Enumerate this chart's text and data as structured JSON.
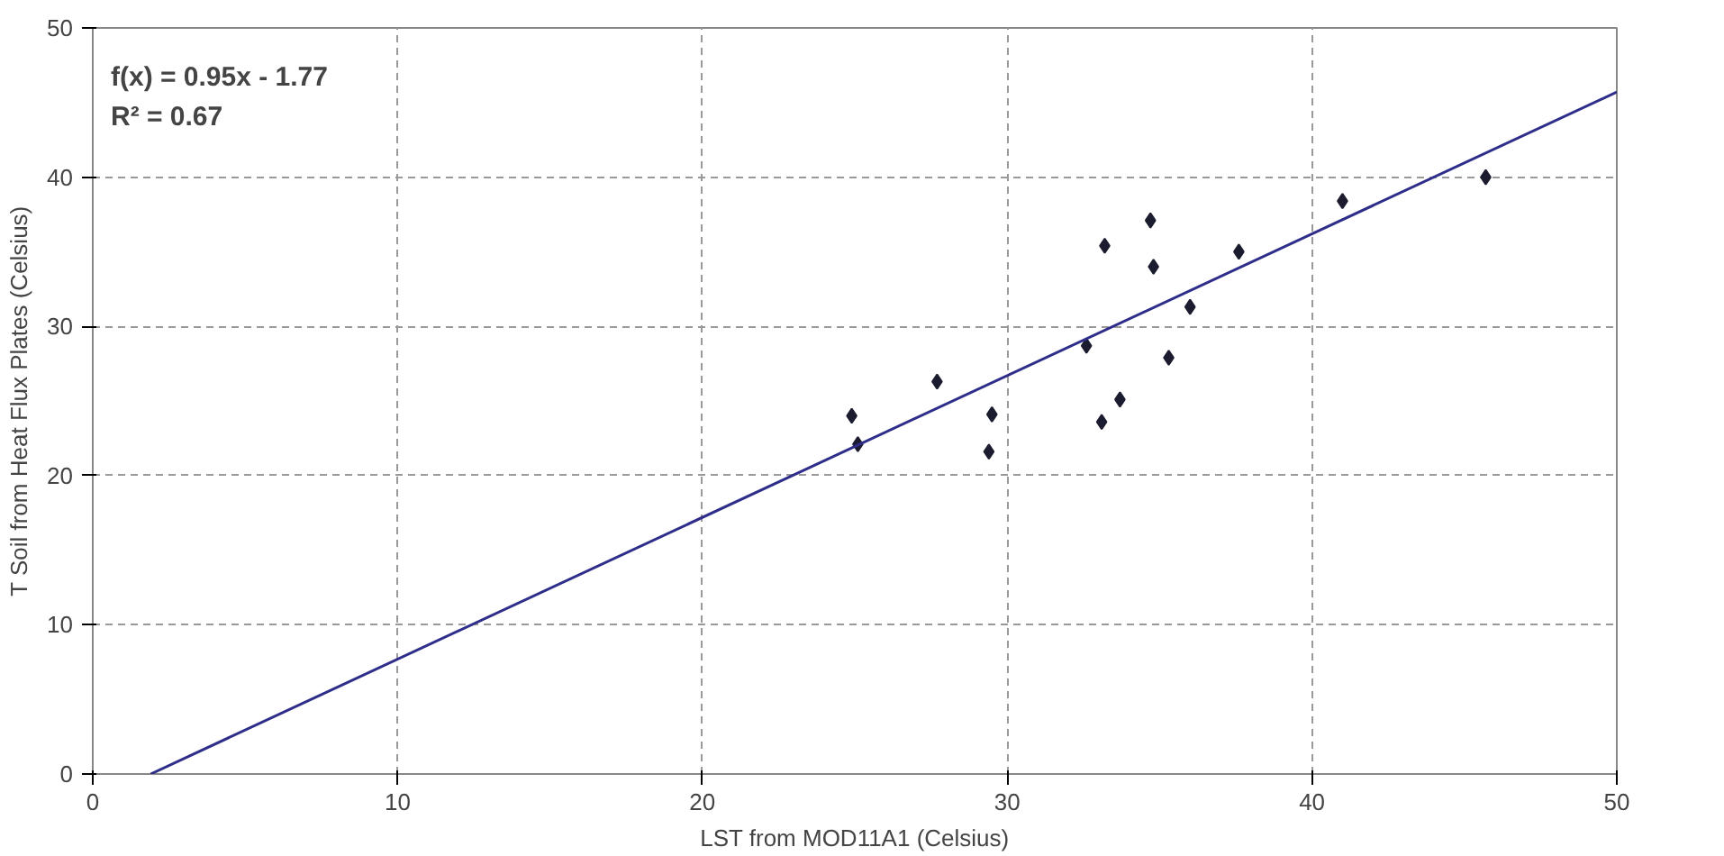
{
  "chart_data": {
    "type": "scatter",
    "xlabel": "LST from MOD11A1 (Celsius)",
    "ylabel": "T Soil from Heat Flux Plates (Celsius)",
    "xlim": [
      0,
      50
    ],
    "ylim": [
      0,
      50
    ],
    "xticks": [
      0,
      10,
      20,
      30,
      40,
      50
    ],
    "yticks": [
      0,
      10,
      20,
      30,
      40,
      50
    ],
    "grid": true,
    "marker": "diamond",
    "annotations": [
      "f(x) = 0.95x - 1.77",
      "R² = 0.67"
    ],
    "series": [
      {
        "color": "#1c1c30",
        "x": [
          24.9,
          25.1,
          27.7,
          29.5,
          29.4,
          32.6,
          33.1,
          33.2,
          33.7,
          34.7,
          34.8,
          35.3,
          36.0,
          37.6,
          41.0,
          45.7
        ],
        "values": [
          24.0,
          22.1,
          26.3,
          24.1,
          21.6,
          28.7,
          23.6,
          35.4,
          25.1,
          37.1,
          34.0,
          27.9,
          31.3,
          35.0,
          38.4,
          40.0
        ]
      },
      {
        "type": "line",
        "marker": "none",
        "color": "#2e2e8a",
        "x": [
          1.9,
          50
        ],
        "values": [
          0,
          45.7
        ]
      }
    ]
  }
}
